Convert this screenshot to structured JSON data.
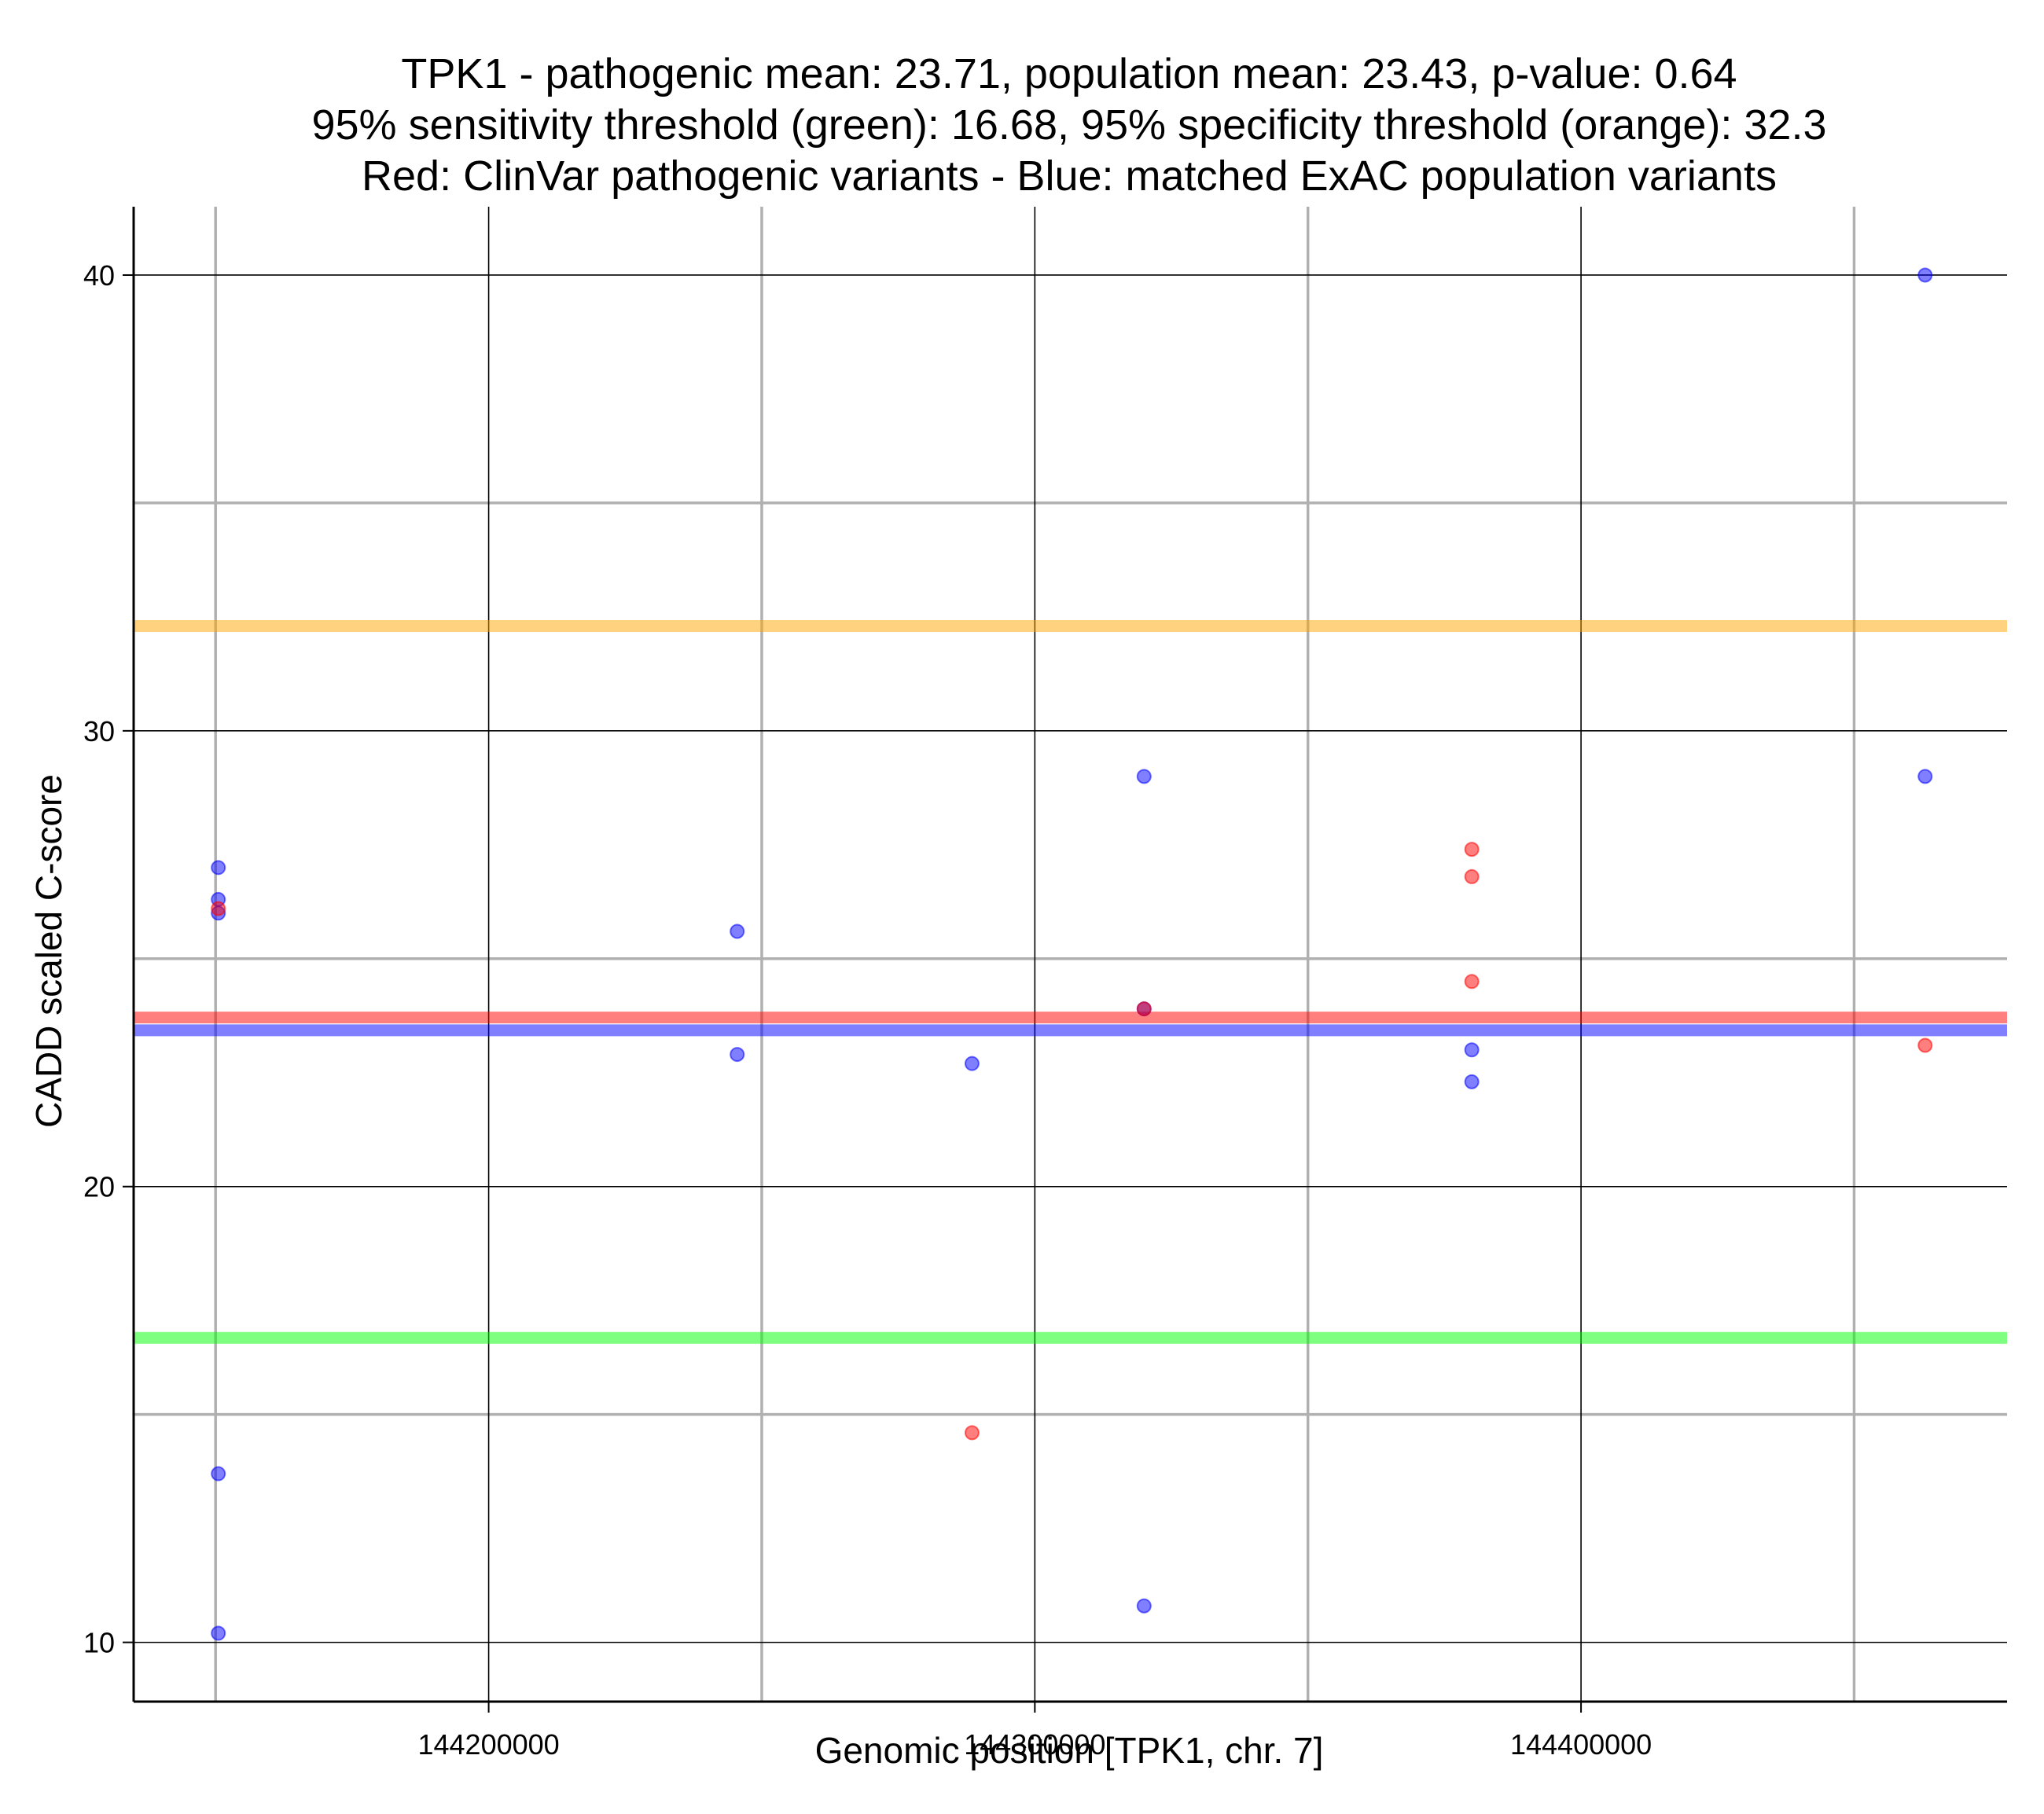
{
  "chart_data": {
    "type": "scatter",
    "title_lines": [
      "TPK1 - pathogenic mean: 23.71, population mean: 23.43, p-value: 0.64",
      "95% sensitivity threshold (green): 16.68, 95% specificity threshold (orange): 32.3",
      "Red: ClinVar pathogenic variants - Blue: matched ExAC population variants"
    ],
    "xlabel": "Genomic position [TPK1, chr. 7]",
    "ylabel": "CADD scaled C-score",
    "xlim": [
      144135000,
      144478000
    ],
    "ylim": [
      8.7,
      41.5
    ],
    "x_major_ticks": [
      144200000,
      144300000,
      144400000
    ],
    "x_major_tick_labels": [
      "144200000",
      "144300000",
      "144400000"
    ],
    "x_minor_ticks": [
      144150000,
      144250000,
      144350000,
      144450000
    ],
    "y_major_ticks": [
      10,
      20,
      30,
      40
    ],
    "y_major_tick_labels": [
      "10",
      "20",
      "30",
      "40"
    ],
    "y_minor_ticks": [
      15,
      25,
      35
    ],
    "grid": true,
    "series": [
      {
        "color": "#0000ff",
        "points": [
          {
            "x": 144150500,
            "y": 27.0
          },
          {
            "x": 144150500,
            "y": 26.3
          },
          {
            "x": 144150500,
            "y": 26.0
          },
          {
            "x": 144150500,
            "y": 13.7
          },
          {
            "x": 144150500,
            "y": 10.2
          },
          {
            "x": 144245500,
            "y": 25.6
          },
          {
            "x": 144245500,
            "y": 22.9
          },
          {
            "x": 144288500,
            "y": 22.7
          },
          {
            "x": 144320000,
            "y": 29.0
          },
          {
            "x": 144320000,
            "y": 23.9
          },
          {
            "x": 144320000,
            "y": 10.8
          },
          {
            "x": 144380000,
            "y": 23.0
          },
          {
            "x": 144380000,
            "y": 22.3
          },
          {
            "x": 144463000,
            "y": 40.0
          },
          {
            "x": 144463000,
            "y": 29.0
          }
        ]
      },
      {
        "color": "#ff0000",
        "points": [
          {
            "x": 144150500,
            "y": 26.1
          },
          {
            "x": 144288500,
            "y": 14.6
          },
          {
            "x": 144320000,
            "y": 23.9
          },
          {
            "x": 144380000,
            "y": 27.4
          },
          {
            "x": 144380000,
            "y": 26.8
          },
          {
            "x": 144380000,
            "y": 24.5
          },
          {
            "x": 144463000,
            "y": 23.1
          }
        ]
      }
    ],
    "reference_lines": [
      {
        "name": "pathogenic mean",
        "y": 23.71,
        "color": "#ff0000"
      },
      {
        "name": "population mean",
        "y": 23.43,
        "color": "#0000ff"
      },
      {
        "name": "95% sensitivity threshold",
        "y": 16.68,
        "color": "#00ff00"
      },
      {
        "name": "95% specificity threshold",
        "y": 32.3,
        "color": "#ffa500"
      }
    ]
  }
}
